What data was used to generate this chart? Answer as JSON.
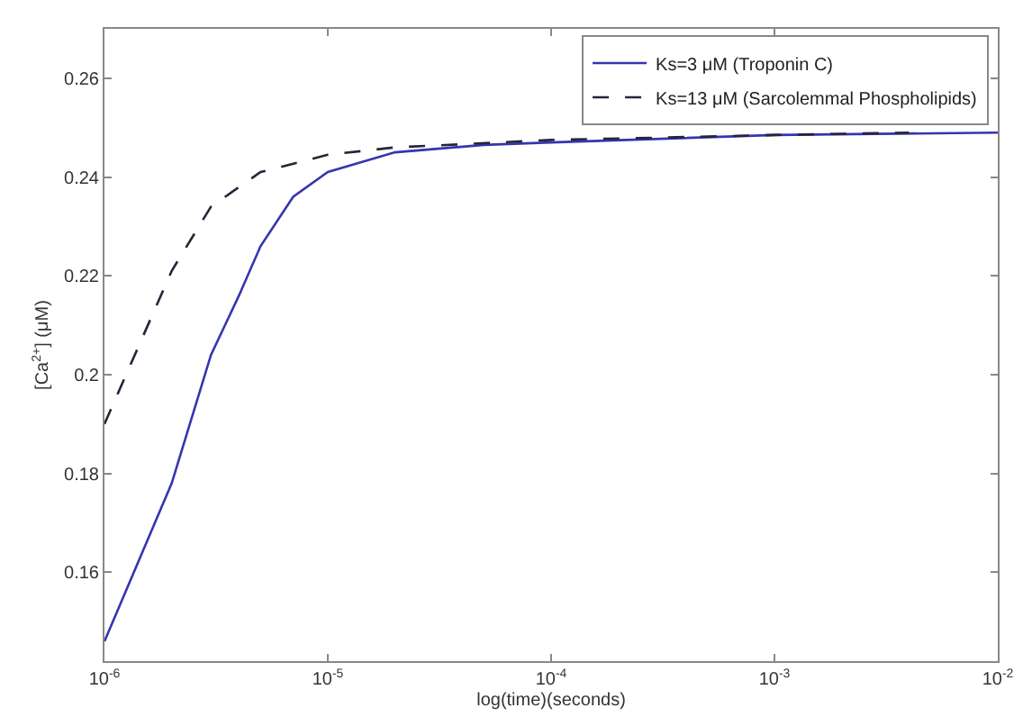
{
  "chart_data": {
    "type": "line",
    "xlabel": "log(time)(seconds)",
    "ylabel": "[Ca$^{2+}$] (μM)",
    "log": "x",
    "xlim": [
      1e-06,
      0.01
    ],
    "ylim": [
      0.142,
      0.27
    ],
    "xticks": [
      {
        "value": 1e-06,
        "label": "10$^{-6}$"
      },
      {
        "value": 1e-05,
        "label": "10$^{-5}$"
      },
      {
        "value": 0.0001,
        "label": "10$^{-4}$"
      },
      {
        "value": 0.001,
        "label": "10$^{-3}$"
      },
      {
        "value": 0.01,
        "label": "10$^{-2}$"
      }
    ],
    "yticks": [
      0.16,
      0.18,
      0.2,
      0.22,
      0.24,
      0.26
    ],
    "grid": false,
    "legend": "top right",
    "marker": "none",
    "series": [
      {
        "name": "Ks=3 μM (Troponin C)",
        "color": "#3535b0",
        "line_style": "solid",
        "x": [
          1e-06,
          2e-06,
          3e-06,
          4e-06,
          5e-06,
          7e-06,
          1e-05,
          2e-05,
          5e-05,
          0.0001,
          0.001,
          0.01
        ],
        "values": [
          0.146,
          0.178,
          0.204,
          0.216,
          0.226,
          0.236,
          0.241,
          0.245,
          0.2465,
          0.247,
          0.2485,
          0.249
        ]
      },
      {
        "name": "Ks=13 μM (Sarcolemmal Phospholipids)",
        "color": "#25253a",
        "line_style": "dashed",
        "x": [
          1e-06,
          2e-06,
          3e-06,
          5e-06,
          1e-05,
          2e-05,
          0.0001,
          0.001,
          0.004
        ],
        "values": [
          0.19,
          0.221,
          0.234,
          0.241,
          0.2445,
          0.246,
          0.2475,
          0.2485,
          0.249
        ]
      }
    ]
  }
}
